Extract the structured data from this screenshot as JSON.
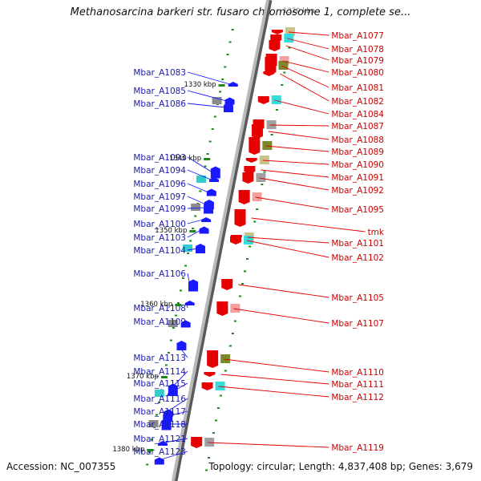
{
  "title": "Methanosarcina barkeri str. fusaro chromosome 1, complete se...",
  "top_scale_label": "1320 kbp",
  "footer": {
    "accession": "Accession: NC_007355",
    "summary": "Topology: circular; Length: 4,837,408 bp; Genes: 3,679"
  },
  "colors": {
    "forward": "#1a1aff",
    "reverse": "#e60000",
    "backbone": "#8c8c8c",
    "tick": "#1a8a1a",
    "label_forward": "#1a1aaa",
    "label_reverse": "#cc0000"
  },
  "scale": [
    {
      "label": "1330 kbp"
    },
    {
      "label": "1340 kbp"
    },
    {
      "label": "1350 kbp"
    },
    {
      "label": "1360 kbp"
    },
    {
      "label": "1370 kbp"
    },
    {
      "label": "1380 kbp"
    }
  ],
  "forward_genes": [
    {
      "label": "Mbar_A1083"
    },
    {
      "label": "Mbar_A1085"
    },
    {
      "label": "Mbar_A1086"
    },
    {
      "label": "Mbar_A1093"
    },
    {
      "label": "Mbar_A1094"
    },
    {
      "label": "Mbar_A1096"
    },
    {
      "label": "Mbar_A1097"
    },
    {
      "label": "Mbar_A1099"
    },
    {
      "label": "Mbar_A1100"
    },
    {
      "label": "Mbar_A1103"
    },
    {
      "label": "Mbar_A1104"
    },
    {
      "label": "Mbar_A1106"
    },
    {
      "label": "Mbar_A1108"
    },
    {
      "label": "Mbar_A1109"
    },
    {
      "label": "Mbar_A1113"
    },
    {
      "label": "Mbar_A1114"
    },
    {
      "label": "Mbar_A1115"
    },
    {
      "label": "Mbar_A1116"
    },
    {
      "label": "Mbar_A1117"
    },
    {
      "label": "Mbar_A1118"
    },
    {
      "label": "Mbar_A1121"
    },
    {
      "label": "Mbar_A1123"
    }
  ],
  "reverse_genes": [
    {
      "label": "Mbar_A1077"
    },
    {
      "label": "Mbar_A1078"
    },
    {
      "label": "Mbar_A1079"
    },
    {
      "label": "Mbar_A1080"
    },
    {
      "label": "Mbar_A1081"
    },
    {
      "label": "Mbar_A1082"
    },
    {
      "label": "Mbar_A1084"
    },
    {
      "label": "Mbar_A1087"
    },
    {
      "label": "Mbar_A1088"
    },
    {
      "label": "Mbar_A1089"
    },
    {
      "label": "Mbar_A1090"
    },
    {
      "label": "Mbar_A1091"
    },
    {
      "label": "Mbar_A1092"
    },
    {
      "label": "Mbar_A1095"
    },
    {
      "label": "tmk"
    },
    {
      "label": "Mbar_A1101"
    },
    {
      "label": "Mbar_A1102"
    },
    {
      "label": "Mbar_A1105"
    },
    {
      "label": "Mbar_A1107"
    },
    {
      "label": "Mbar_A1110"
    },
    {
      "label": "Mbar_A1111"
    },
    {
      "label": "Mbar_A1112"
    },
    {
      "label": "Mbar_A1119"
    }
  ]
}
